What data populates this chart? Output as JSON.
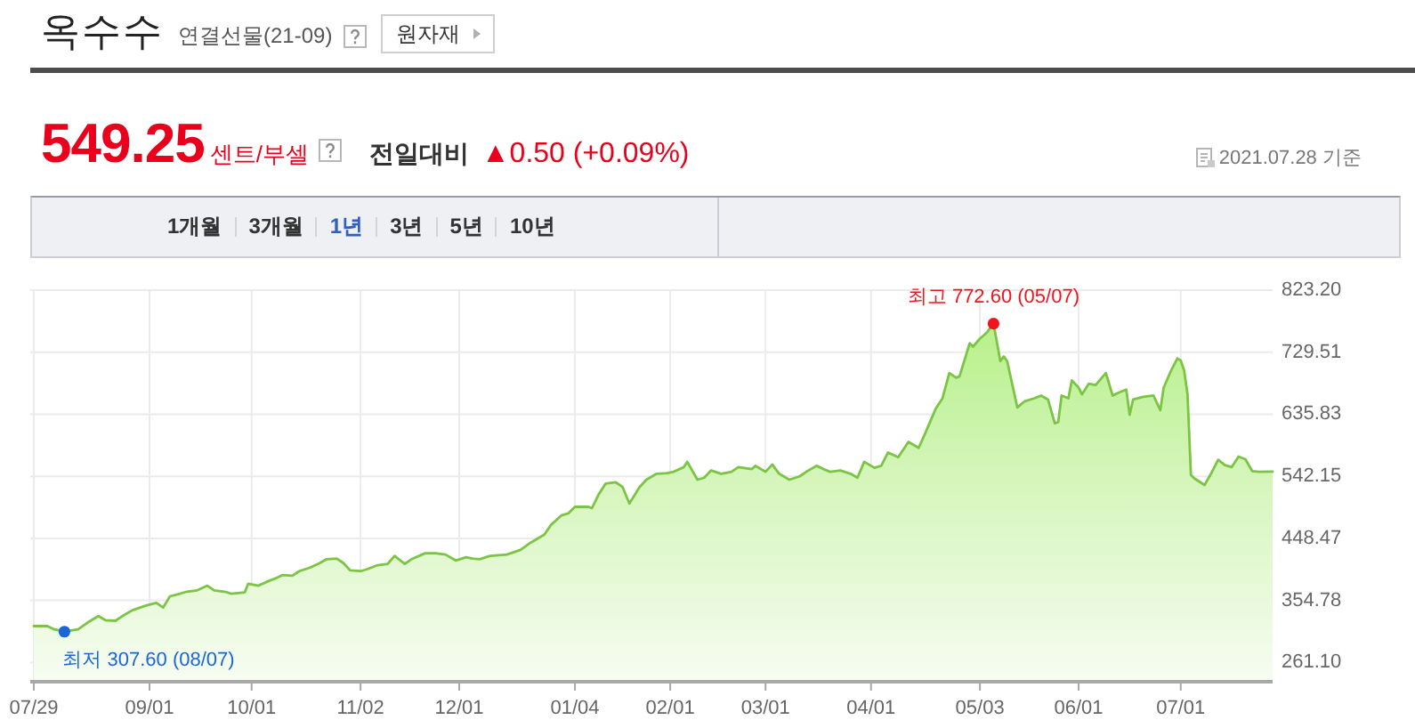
{
  "chart_data": {
    "type": "area",
    "title": "옥수수",
    "subtitle": "연결선물(21-09)",
    "annotations": [
      "원자재",
      "549.25",
      "센트/부셀",
      "전일대비",
      "▲0.50 (+0.09%)",
      "2021.07.28 기준",
      "1개월",
      "3개월",
      "1년",
      "3년",
      "5년",
      "10년",
      {
        "text": "최고 772.60 (05/07)",
        "x": "2021-05-07",
        "y": 772.6
      },
      {
        "text": "최저 307.60 (08/07)",
        "x": "2020-08-07",
        "y": 307.6
      }
    ],
    "series": [
      {
        "type": "area",
        "color": "#7cc443",
        "x": [
          "2020-07-29",
          "2020-08-02",
          "2020-08-04",
          "2020-08-07",
          "2020-08-11",
          "2020-08-14",
          "2020-08-17",
          "2020-08-19",
          "2020-08-22",
          "2020-08-24",
          "2020-08-27",
          "2020-08-31",
          "2020-09-03",
          "2020-09-05",
          "2020-09-07",
          "2020-09-10",
          "2020-09-12",
          "2020-09-15",
          "2020-09-18",
          "2020-09-20",
          "2020-09-23",
          "2020-09-25",
          "2020-09-29",
          "2020-09-30",
          "2020-10-03",
          "2020-10-06",
          "2020-10-08",
          "2020-10-10",
          "2020-10-13",
          "2020-10-15",
          "2020-10-18",
          "2020-10-21",
          "2020-10-23",
          "2020-10-26",
          "2020-10-28",
          "2020-10-30",
          "2020-11-02",
          "2020-11-04",
          "2020-11-07",
          "2020-11-10",
          "2020-11-12",
          "2020-11-15",
          "2020-11-17",
          "2020-11-21",
          "2020-11-24",
          "2020-11-27",
          "2020-11-30",
          "2020-12-03",
          "2020-12-05",
          "2020-12-07",
          "2020-12-10",
          "2020-12-15",
          "2020-12-19",
          "2020-12-22",
          "2020-12-26",
          "2020-12-28",
          "2020-12-31",
          "2021-01-02",
          "2021-01-04",
          "2021-01-08",
          "2021-01-09",
          "2021-01-11",
          "2021-01-13",
          "2021-01-16",
          "2021-01-18",
          "2021-01-20",
          "2021-01-23",
          "2021-01-25",
          "2021-01-28",
          "2021-01-31",
          "2021-02-02",
          "2021-02-05",
          "2021-02-06",
          "2021-02-09",
          "2021-02-11",
          "2021-02-13",
          "2021-02-16",
          "2021-02-19",
          "2021-02-21",
          "2021-02-25",
          "2021-02-26",
          "2021-03-01",
          "2021-03-03",
          "2021-03-05",
          "2021-03-08",
          "2021-03-11",
          "2021-03-13",
          "2021-03-16",
          "2021-03-18",
          "2021-03-20",
          "2021-03-23",
          "2021-03-26",
          "2021-03-28",
          "2021-03-30",
          "2021-04-02",
          "2021-04-04",
          "2021-04-06",
          "2021-04-09",
          "2021-04-12",
          "2021-04-15",
          "2021-04-17",
          "2021-04-20",
          "2021-04-22",
          "2021-04-24",
          "2021-04-26",
          "2021-04-27",
          "2021-04-30",
          "2021-05-01",
          "2021-05-03",
          "2021-05-05",
          "2021-05-07",
          "2021-05-09",
          "2021-05-10",
          "2021-05-11",
          "2021-05-14",
          "2021-05-16",
          "2021-05-19",
          "2021-05-21",
          "2021-05-23",
          "2021-05-25",
          "2021-05-26",
          "2021-05-27",
          "2021-05-29",
          "2021-05-30",
          "2021-06-01",
          "2021-06-02",
          "2021-06-04",
          "2021-06-06",
          "2021-06-09",
          "2021-06-11",
          "2021-06-13",
          "2021-06-15",
          "2021-06-16",
          "2021-06-17",
          "2021-06-20",
          "2021-06-23",
          "2021-06-25",
          "2021-06-26",
          "2021-06-28",
          "2021-06-30",
          "2021-07-01",
          "2021-07-02",
          "2021-07-03",
          "2021-07-04",
          "2021-07-05",
          "2021-07-08",
          "2021-07-10",
          "2021-07-12",
          "2021-07-14",
          "2021-07-16",
          "2021-07-18",
          "2021-07-20",
          "2021-07-22",
          "2021-07-24",
          "2021-07-28"
        ],
        "values": [
          316,
          316,
          311,
          307.6,
          311,
          322,
          331,
          325,
          324,
          331,
          340,
          347,
          351,
          344,
          361,
          365,
          368,
          370,
          377,
          370,
          368,
          365,
          367,
          380,
          377,
          384,
          388,
          393,
          392,
          399,
          404,
          411,
          417,
          418,
          411,
          400,
          399,
          402,
          408,
          410,
          422,
          410,
          417,
          426,
          426,
          424,
          415,
          420,
          418,
          417,
          422,
          424,
          431,
          442,
          454,
          469,
          483,
          486,
          496,
          496,
          494,
          515,
          531,
          533,
          526,
          501,
          526,
          537,
          546,
          547,
          549,
          556,
          564,
          537,
          540,
          551,
          546,
          549,
          556,
          553,
          558,
          549,
          560,
          546,
          537,
          542,
          549,
          558,
          553,
          549,
          551,
          546,
          540,
          564,
          555,
          558,
          578,
          571,
          594,
          585,
          608,
          644,
          660,
          698,
          691,
          693,
          743,
          738,
          750,
          759,
          772.6,
          716,
          723,
          716,
          646,
          655,
          660,
          664,
          658,
          622,
          624,
          664,
          660,
          687,
          676,
          666,
          682,
          680,
          698,
          664,
          669,
          673,
          635,
          658,
          662,
          664,
          642,
          676,
          700,
          720,
          717,
          702,
          666,
          544,
          539,
          529,
          547,
          567,
          559,
          556,
          572,
          568,
          550,
          549,
          549.25
        ]
      },
      {
        "type": "scatter",
        "x": [
          "2020-08-07",
          "2021-05-07"
        ],
        "values": [
          307.6,
          772.6
        ],
        "colors": [
          "#1a66d6",
          "#f0141e"
        ]
      }
    ],
    "xlim": [
      "2020-07-29",
      "2021-07-28"
    ],
    "xticks": [
      {
        "value": "2020-07-29",
        "label": "07/29"
      },
      {
        "value": "2020-09-01",
        "label": "09/01"
      },
      {
        "value": "2020-10-01",
        "label": "10/01"
      },
      {
        "value": "2020-11-02",
        "label": "11/02"
      },
      {
        "value": "2020-12-01",
        "label": "12/01"
      },
      {
        "value": "2021-01-04",
        "label": "01/04"
      },
      {
        "value": "2021-02-01",
        "label": "02/01"
      },
      {
        "value": "2021-03-01",
        "label": "03/01"
      },
      {
        "value": "2021-04-01",
        "label": "04/01"
      },
      {
        "value": "2021-05-03",
        "label": "05/03"
      },
      {
        "value": "2021-06-01",
        "label": "06/01"
      },
      {
        "value": "2021-07-01",
        "label": "07/01"
      }
    ],
    "ylim": [
      232,
      823.2
    ],
    "yticks": [
      {
        "value": 261.1,
        "label": "261.10"
      },
      354.78,
      448.47,
      542.15,
      635.83,
      729.51,
      {
        "value": 823.2,
        "label": "823.20"
      }
    ],
    "grid": true
  }
}
